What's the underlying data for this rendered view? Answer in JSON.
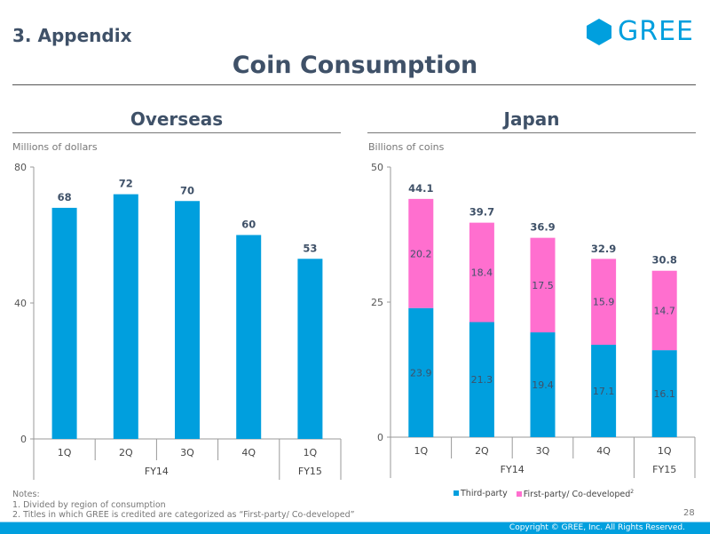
{
  "header": {
    "section": "3. Appendix",
    "logo": "GREE",
    "title": "Coin Consumption"
  },
  "colors": {
    "third": "#009fde",
    "first": "#ff6fcf",
    "text": "#3f5168"
  },
  "chart_data": [
    {
      "type": "bar",
      "title": "Overseas",
      "ylabel": "Millions of dollars",
      "ylim": [
        0,
        80
      ],
      "yticks": [
        0,
        40,
        80
      ],
      "categories": [
        "1Q",
        "2Q",
        "3Q",
        "4Q",
        "1Q"
      ],
      "groups": [
        {
          "label": "FY14",
          "span": 4
        },
        {
          "label": "FY15",
          "span": 1
        }
      ],
      "values": [
        68,
        72,
        70,
        60,
        53
      ]
    },
    {
      "type": "bar",
      "stacked": true,
      "title": "Japan",
      "ylabel": "Billions of coins",
      "ylim": [
        0,
        50
      ],
      "yticks": [
        0,
        25,
        50
      ],
      "categories": [
        "1Q",
        "2Q",
        "3Q",
        "4Q",
        "1Q"
      ],
      "groups": [
        {
          "label": "FY14",
          "span": 4
        },
        {
          "label": "FY15",
          "span": 1
        }
      ],
      "series": [
        {
          "name": "Third-party",
          "values": [
            23.9,
            21.3,
            19.4,
            17.1,
            16.1
          ]
        },
        {
          "name": "First-party/ Co-developed",
          "sup": "2",
          "values": [
            20.2,
            18.4,
            17.5,
            15.9,
            14.7
          ]
        }
      ],
      "totals": [
        44.1,
        39.7,
        36.9,
        32.9,
        30.8
      ]
    }
  ],
  "notes": [
    "Notes:",
    "1. Divided by region of consumption",
    "2. Titles in which GREE is credited are categorized as “First-party/ Co-developed”"
  ],
  "page_number": "28",
  "copyright": "Copyright © GREE, Inc. All Rights Reserved."
}
